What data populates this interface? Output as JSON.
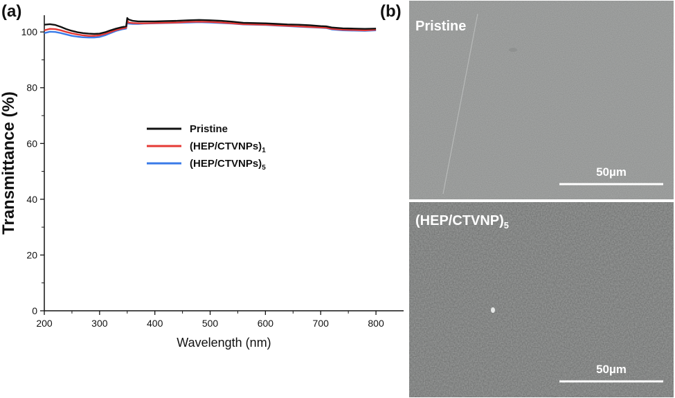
{
  "panel_a": {
    "label": "(a)",
    "chart_data": {
      "type": "line",
      "xlabel": "Wavelength (nm)",
      "ylabel": "Transmittance (%)",
      "xlim": [
        200,
        850
      ],
      "ylim": [
        0,
        106
      ],
      "xticks": [
        200,
        300,
        400,
        500,
        600,
        700,
        800
      ],
      "yticks": [
        0,
        20,
        40,
        60,
        80,
        100
      ],
      "legend_position": "center",
      "series": [
        {
          "name": "Pristine",
          "name_main": "Pristine",
          "name_sub": "",
          "color": "#111111",
          "x": [
            200,
            210,
            220,
            230,
            240,
            250,
            260,
            270,
            280,
            290,
            300,
            310,
            320,
            330,
            340,
            348,
            350,
            352,
            360,
            370,
            380,
            400,
            420,
            440,
            460,
            480,
            500,
            520,
            540,
            560,
            580,
            600,
            620,
            640,
            660,
            680,
            700,
            710,
            720,
            740,
            760,
            780,
            800
          ],
          "y": [
            102.6,
            102.8,
            102.5,
            101.8,
            101.0,
            100.4,
            99.9,
            99.6,
            99.4,
            99.3,
            99.4,
            99.9,
            100.6,
            101.2,
            101.7,
            102.0,
            105.0,
            104.5,
            104.0,
            103.8,
            103.8,
            103.8,
            103.9,
            104.0,
            104.2,
            104.3,
            104.2,
            104.0,
            103.7,
            103.3,
            103.2,
            103.1,
            102.9,
            102.7,
            102.6,
            102.4,
            102.1,
            102.0,
            101.6,
            101.3,
            101.2,
            101.1,
            101.2
          ]
        },
        {
          "name": "(HEP/CTVNPs)1",
          "name_main": "(HEP/CTVNPs)",
          "name_sub": "1",
          "color": "#e53935",
          "x": [
            200,
            210,
            220,
            230,
            240,
            250,
            260,
            270,
            280,
            290,
            300,
            310,
            320,
            330,
            340,
            348,
            350,
            352,
            360,
            370,
            380,
            400,
            420,
            440,
            460,
            480,
            500,
            520,
            540,
            560,
            580,
            600,
            620,
            640,
            660,
            680,
            700,
            710,
            720,
            740,
            760,
            780,
            800
          ],
          "y": [
            100.6,
            101.1,
            101.0,
            100.6,
            100.0,
            99.5,
            99.1,
            98.8,
            98.6,
            98.6,
            98.8,
            99.3,
            100.0,
            100.7,
            101.2,
            101.5,
            104.2,
            103.4,
            103.2,
            103.1,
            103.1,
            103.2,
            103.3,
            103.4,
            103.6,
            103.7,
            103.6,
            103.4,
            103.1,
            102.8,
            102.7,
            102.6,
            102.4,
            102.2,
            102.0,
            101.8,
            101.6,
            101.5,
            101.1,
            100.8,
            100.7,
            100.6,
            100.8
          ]
        },
        {
          "name": "(HEP/CTVNPs)5",
          "name_main": "(HEP/CTVNPs)",
          "name_sub": "5",
          "color": "#3a7be8",
          "x": [
            200,
            210,
            220,
            230,
            240,
            250,
            260,
            270,
            280,
            290,
            300,
            310,
            320,
            330,
            340,
            348,
            350,
            352,
            360,
            370,
            380,
            400,
            420,
            440,
            460,
            480,
            500,
            520,
            540,
            560,
            580,
            600,
            620,
            640,
            660,
            680,
            700,
            710,
            720,
            740,
            760,
            780,
            800
          ],
          "y": [
            99.6,
            100.1,
            100.0,
            99.6,
            99.1,
            98.6,
            98.3,
            98.1,
            98.0,
            98.0,
            98.2,
            98.8,
            99.6,
            100.4,
            100.9,
            101.2,
            103.8,
            103.0,
            102.9,
            102.9,
            103.0,
            103.1,
            103.2,
            103.3,
            103.4,
            103.5,
            103.4,
            103.2,
            103.0,
            102.7,
            102.6,
            102.5,
            102.3,
            102.1,
            101.9,
            101.7,
            101.5,
            101.4,
            100.9,
            100.6,
            100.5,
            100.4,
            100.6
          ]
        }
      ]
    }
  },
  "panel_b": {
    "label": "(b)",
    "images": [
      {
        "label_main": "Pristine",
        "label_sub": "",
        "scale_bar": "50µm",
        "tone": "#a9abaa"
      },
      {
        "label_main": "(HEP/CTVNP)",
        "label_sub": "5",
        "scale_bar": "50µm",
        "tone": "#9ea09f"
      }
    ]
  }
}
